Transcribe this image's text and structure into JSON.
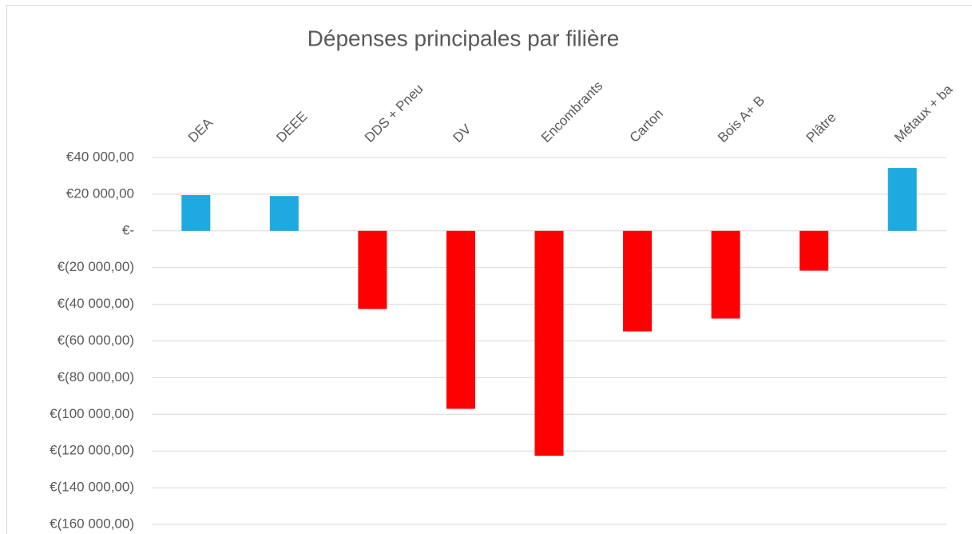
{
  "chart_data": {
    "type": "bar",
    "title": "Dépenses principales par filière",
    "categories": [
      "DEA",
      "DEEE",
      "DDS + Pneu",
      "DV",
      "Encombrants",
      "Carton",
      "Bois A+ B",
      "Plâtre",
      "Métaux + ba"
    ],
    "values": [
      19500,
      19000,
      -42600,
      -97000,
      -122600,
      -54800,
      -47800,
      -21700,
      34300
    ],
    "colors": [
      "#1fa9e1",
      "#1fa9e1",
      "#ff0000",
      "#ff0000",
      "#ff0000",
      "#ff0000",
      "#ff0000",
      "#ff0000",
      "#1fa9e1"
    ],
    "ylim": [
      -160000,
      40000
    ],
    "yticks": [
      {
        "value": 40000,
        "label": "€40 000,00"
      },
      {
        "value": 20000,
        "label": "€20 000,00"
      },
      {
        "value": 0,
        "label": "€-"
      },
      {
        "value": -20000,
        "label": "€(20 000,00)"
      },
      {
        "value": -40000,
        "label": "€(40 000,00)"
      },
      {
        "value": -60000,
        "label": "€(60 000,00)"
      },
      {
        "value": -80000,
        "label": "€(80 000,00)"
      },
      {
        "value": -100000,
        "label": "€(100 000,00)"
      },
      {
        "value": -120000,
        "label": "€(120 000,00)"
      },
      {
        "value": -140000,
        "label": "€(140 000,00)"
      },
      {
        "value": -160000,
        "label": "€(160 000,00)"
      }
    ],
    "grid": true
  }
}
